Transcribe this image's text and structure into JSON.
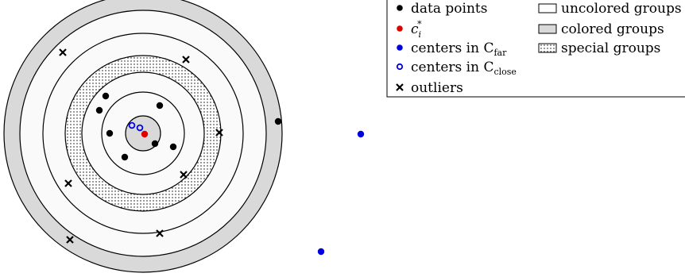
{
  "legend": {
    "items": [
      {
        "key": "data_points",
        "label": "data points",
        "marker": "filled-dot",
        "color": "#000000"
      },
      {
        "key": "c_star",
        "label_main": "c",
        "label_sub": "i",
        "label_sup": "*",
        "marker": "filled-dot",
        "color": "#e00000"
      },
      {
        "key": "centers_far",
        "label_main": "centers in C",
        "label_sub": "far",
        "marker": "filled-dot",
        "color": "#0000e0"
      },
      {
        "key": "centers_close",
        "label_main": "centers in C",
        "label_sub": "close",
        "marker": "hollow-dot",
        "color": "#0000e0"
      },
      {
        "key": "outliers",
        "label": "outliers",
        "marker": "cross",
        "color": "#000000"
      },
      {
        "key": "uncolored",
        "label": "uncolored groups",
        "marker": "white-box",
        "color": "#ffffff"
      },
      {
        "key": "colored",
        "label": "colored groups",
        "marker": "gray-box",
        "color": "#d9d9d9"
      },
      {
        "key": "special",
        "label": "special groups",
        "marker": "dotted-box",
        "color": "#ffffff"
      }
    ]
  },
  "colors": {
    "gray_fill": "#d9d9d9",
    "ring_white": "#fafafa",
    "stroke": "#000000",
    "red": "#e00000",
    "blue": "#0000e0"
  },
  "groups": [
    {
      "name": "outer-colored-ring",
      "type": "colored"
    },
    {
      "name": "uncolored-ring-2",
      "type": "uncolored"
    },
    {
      "name": "uncolored-ring-3",
      "type": "uncolored"
    },
    {
      "name": "special-ring",
      "type": "special"
    },
    {
      "name": "uncolored-ring-5",
      "type": "uncolored"
    },
    {
      "name": "uncolored-ring-6",
      "type": "uncolored"
    },
    {
      "name": "inner-colored-disk",
      "type": "colored"
    }
  ]
}
